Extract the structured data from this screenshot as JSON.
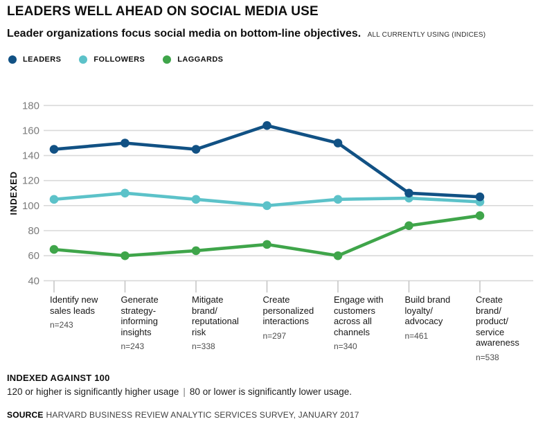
{
  "header": {
    "title": "LEADERS WELL AHEAD ON SOCIAL MEDIA USE",
    "subtitle": "Leader organizations focus social media on bottom-line objectives.",
    "subtitle_note": "ALL CURRENTLY USING (INDICES)"
  },
  "legend": [
    {
      "label": "LEADERS",
      "color": "#115184"
    },
    {
      "label": "FOLLOWERS",
      "color": "#5cc2c9"
    },
    {
      "label": "LAGGARDS",
      "color": "#3fa54a"
    }
  ],
  "chart_data": {
    "type": "line",
    "title": "LEADERS WELL AHEAD ON SOCIAL MEDIA USE",
    "subtitle": "Leader organizations focus social media on bottom-line objectives.",
    "annotation": "ALL CURRENTLY USING (INDICES)",
    "xlabel": "",
    "ylabel": "INDEXED",
    "ylim": [
      40,
      180
    ],
    "yticks": [
      180,
      160,
      140,
      120,
      100,
      80,
      60,
      40
    ],
    "grid": true,
    "legend_position": "top-left",
    "categories": [
      "Identify new sales leads",
      "Generate strategy-informing insights",
      "Mitigate brand/reputational risk",
      "Create personalized interactions",
      "Engage with customers across all channels",
      "Build brand loyalty/advocacy",
      "Create brand/product/service awareness"
    ],
    "sample_sizes": [
      "n=243",
      "n=243",
      "n=338",
      "n=297",
      "n=340",
      "n=461",
      "n=538"
    ],
    "series": [
      {
        "name": "LEADERS",
        "color": "#115184",
        "values": [
          145,
          150,
          145,
          164,
          150,
          110,
          107
        ]
      },
      {
        "name": "FOLLOWERS",
        "color": "#5cc2c9",
        "values": [
          105,
          110,
          105,
          100,
          105,
          106,
          103
        ]
      },
      {
        "name": "LAGGARDS",
        "color": "#3fa54a",
        "values": [
          65,
          60,
          64,
          69,
          60,
          84,
          92
        ]
      }
    ],
    "colors": {
      "gridline": "#d9d9d9",
      "axis_tick": "#c2c2c2",
      "ytick_text": "#7b7b7b"
    }
  },
  "footer": {
    "note_title": "INDEXED AGAINST 100",
    "note_left": "120 or higher is significantly higher usage",
    "note_separator": "|",
    "note_right": "80 or lower is significantly lower usage.",
    "source_label": "SOURCE",
    "source_text": "HARVARD BUSINESS REVIEW ANALYTIC SERVICES SURVEY, JANUARY 2017"
  }
}
